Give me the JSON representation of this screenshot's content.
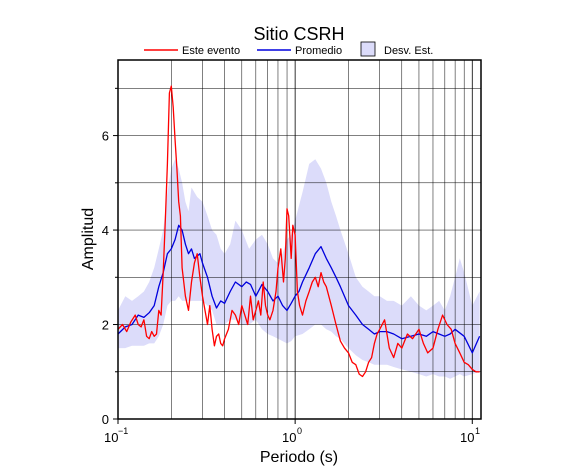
{
  "chart_data": {
    "type": "line",
    "title": "Sitio CSRH",
    "xlabel": "Periodo (s)",
    "ylabel": "Amplitud",
    "xscale": "log",
    "xlim": [
      0.1,
      11.2
    ],
    "ylim": [
      0,
      7.6
    ],
    "grid": true,
    "legend_position": "top",
    "x_tick_labels": [
      "10",
      "−1",
      "10",
      "0",
      "10",
      "1"
    ],
    "y_ticks": [
      0,
      2,
      4,
      6
    ],
    "y_tick_labels": [
      "0",
      "2",
      "4",
      "6"
    ],
    "colors": {
      "event": "#ff0000",
      "mean": "#0000dd",
      "band_fill": "#dcdcfa",
      "band_edge": "#000000"
    },
    "legend": {
      "event_label": "Este evento",
      "mean_label": "Promedio",
      "band_label": "Desv. Est."
    },
    "series": [
      {
        "name": "Este evento",
        "x": [
          0.1,
          0.106,
          0.112,
          0.118,
          0.125,
          0.13,
          0.135,
          0.14,
          0.145,
          0.15,
          0.155,
          0.16,
          0.165,
          0.17,
          0.175,
          0.18,
          0.185,
          0.19,
          0.195,
          0.2,
          0.205,
          0.21,
          0.215,
          0.22,
          0.225,
          0.23,
          0.24,
          0.25,
          0.26,
          0.27,
          0.28,
          0.29,
          0.3,
          0.31,
          0.32,
          0.33,
          0.34,
          0.35,
          0.36,
          0.37,
          0.38,
          0.39,
          0.4,
          0.42,
          0.44,
          0.46,
          0.48,
          0.5,
          0.52,
          0.54,
          0.56,
          0.58,
          0.6,
          0.62,
          0.64,
          0.66,
          0.68,
          0.7,
          0.72,
          0.75,
          0.78,
          0.8,
          0.83,
          0.86,
          0.88,
          0.9,
          0.92,
          0.95,
          0.97,
          1.0,
          1.03,
          1.06,
          1.1,
          1.15,
          1.2,
          1.25,
          1.3,
          1.35,
          1.4,
          1.45,
          1.5,
          1.6,
          1.7,
          1.8,
          1.9,
          2.0,
          2.1,
          2.2,
          2.3,
          2.4,
          2.5,
          2.6,
          2.7,
          2.8,
          2.9,
          3.0,
          3.2,
          3.4,
          3.6,
          3.8,
          4.0,
          4.3,
          4.6,
          5.0,
          5.3,
          5.6,
          6.0,
          6.4,
          6.8,
          7.2,
          7.6,
          8.0,
          8.5,
          9.0,
          9.5,
          10.0,
          10.5,
          11.0
        ],
        "y": [
          1.9,
          2.0,
          1.85,
          2.05,
          2.2,
          2.0,
          1.95,
          2.1,
          1.75,
          1.7,
          1.85,
          1.75,
          1.8,
          2.3,
          2.2,
          3.1,
          4.2,
          5.4,
          6.9,
          7.05,
          6.6,
          5.9,
          5.3,
          4.6,
          4.3,
          3.2,
          2.6,
          2.3,
          2.9,
          3.3,
          3.5,
          3.0,
          2.6,
          2.3,
          2.0,
          2.4,
          1.9,
          1.55,
          1.75,
          1.8,
          1.6,
          1.55,
          1.7,
          1.9,
          2.3,
          2.2,
          2.0,
          2.4,
          2.2,
          2.0,
          2.6,
          2.1,
          2.3,
          2.5,
          2.2,
          2.9,
          2.4,
          2.2,
          2.1,
          2.3,
          2.7,
          3.2,
          3.6,
          2.9,
          3.4,
          4.45,
          4.3,
          3.4,
          4.1,
          3.9,
          2.7,
          2.4,
          2.2,
          2.5,
          2.7,
          2.9,
          3.0,
          2.8,
          3.1,
          2.9,
          2.8,
          2.4,
          2.0,
          1.65,
          1.5,
          1.4,
          1.2,
          1.15,
          0.95,
          0.9,
          1.0,
          1.2,
          1.3,
          1.6,
          1.8,
          1.9,
          2.1,
          1.5,
          1.3,
          1.6,
          1.5,
          1.8,
          1.7,
          1.9,
          1.6,
          1.4,
          1.5,
          1.9,
          2.2,
          2.0,
          1.9,
          1.6,
          1.4,
          1.2,
          1.15,
          1.05,
          1.0,
          1.0
        ]
      },
      {
        "name": "Promedio",
        "x": [
          0.1,
          0.11,
          0.12,
          0.13,
          0.14,
          0.15,
          0.16,
          0.17,
          0.18,
          0.19,
          0.2,
          0.21,
          0.22,
          0.23,
          0.24,
          0.25,
          0.26,
          0.27,
          0.28,
          0.29,
          0.3,
          0.32,
          0.34,
          0.36,
          0.38,
          0.4,
          0.43,
          0.46,
          0.5,
          0.53,
          0.56,
          0.6,
          0.65,
          0.7,
          0.75,
          0.8,
          0.85,
          0.9,
          0.95,
          1.0,
          1.05,
          1.1,
          1.2,
          1.3,
          1.4,
          1.5,
          1.6,
          1.7,
          1.8,
          2.0,
          2.2,
          2.4,
          2.6,
          2.8,
          3.0,
          3.3,
          3.6,
          4.0,
          4.5,
          5.0,
          5.5,
          6.0,
          6.5,
          7.0,
          7.5,
          8.0,
          9.0,
          10.0,
          11.0
        ],
        "y": [
          1.8,
          1.95,
          2.0,
          2.2,
          2.15,
          2.25,
          2.4,
          2.8,
          3.1,
          3.5,
          3.6,
          3.8,
          4.1,
          4.0,
          3.7,
          3.5,
          3.6,
          3.4,
          3.45,
          3.5,
          3.3,
          3.0,
          2.6,
          2.35,
          2.5,
          2.45,
          2.7,
          2.9,
          2.8,
          2.9,
          2.85,
          2.6,
          2.85,
          2.7,
          2.5,
          2.6,
          2.4,
          2.3,
          2.45,
          2.6,
          2.7,
          2.9,
          3.2,
          3.5,
          3.65,
          3.4,
          3.2,
          3.0,
          2.8,
          2.4,
          2.2,
          2.0,
          1.9,
          1.8,
          1.85,
          1.85,
          1.8,
          1.7,
          1.75,
          1.8,
          1.75,
          1.85,
          1.8,
          1.75,
          1.8,
          1.9,
          1.75,
          1.4,
          1.75
        ]
      },
      {
        "name": "Desv. Est.",
        "x": [
          0.1,
          0.11,
          0.12,
          0.13,
          0.14,
          0.15,
          0.16,
          0.17,
          0.18,
          0.19,
          0.2,
          0.21,
          0.22,
          0.23,
          0.24,
          0.25,
          0.26,
          0.28,
          0.3,
          0.32,
          0.34,
          0.36,
          0.38,
          0.4,
          0.43,
          0.46,
          0.5,
          0.55,
          0.6,
          0.65,
          0.7,
          0.75,
          0.8,
          0.85,
          0.9,
          0.95,
          1.0,
          1.1,
          1.2,
          1.3,
          1.4,
          1.5,
          1.6,
          1.7,
          1.8,
          2.0,
          2.2,
          2.4,
          2.6,
          2.8,
          3.0,
          3.3,
          3.6,
          4.0,
          4.5,
          5.0,
          5.5,
          6.0,
          6.5,
          7.0,
          7.5,
          8.0,
          8.5,
          9.0,
          10.0,
          11.0
        ],
        "upper": [
          2.3,
          2.6,
          2.5,
          2.6,
          2.7,
          2.9,
          3.2,
          3.6,
          4.0,
          4.8,
          5.3,
          5.5,
          5.3,
          5.0,
          4.6,
          4.4,
          4.9,
          4.7,
          4.6,
          4.3,
          4.0,
          3.9,
          3.6,
          3.5,
          3.7,
          4.2,
          4.0,
          3.6,
          3.8,
          3.9,
          3.7,
          3.4,
          3.3,
          3.5,
          3.8,
          3.9,
          4.2,
          4.8,
          5.4,
          5.5,
          5.3,
          5.0,
          4.6,
          4.3,
          4.0,
          3.5,
          3.0,
          2.8,
          2.7,
          2.6,
          2.6,
          2.5,
          2.5,
          2.4,
          2.6,
          2.4,
          2.3,
          2.4,
          2.5,
          2.3,
          2.6,
          3.0,
          3.4,
          3.1,
          2.4,
          2.7
        ],
        "lower": [
          1.5,
          1.5,
          1.55,
          1.55,
          1.55,
          1.6,
          1.6,
          1.75,
          2.0,
          2.4,
          2.5,
          2.5,
          2.6,
          2.5,
          2.5,
          2.5,
          2.5,
          2.5,
          2.5,
          2.4,
          2.3,
          2.0,
          2.0,
          2.0,
          2.1,
          2.1,
          2.0,
          2.0,
          2.1,
          1.9,
          1.8,
          1.75,
          1.7,
          1.65,
          1.6,
          1.65,
          1.75,
          1.8,
          1.9,
          2.0,
          2.0,
          1.9,
          1.85,
          1.75,
          1.7,
          1.5,
          1.35,
          1.25,
          1.2,
          1.15,
          1.15,
          1.15,
          1.1,
          1.05,
          1.0,
          0.95,
          0.9,
          0.95,
          0.9,
          0.9,
          0.85,
          0.9,
          0.95,
          0.9,
          0.95,
          1.0
        ]
      }
    ]
  }
}
